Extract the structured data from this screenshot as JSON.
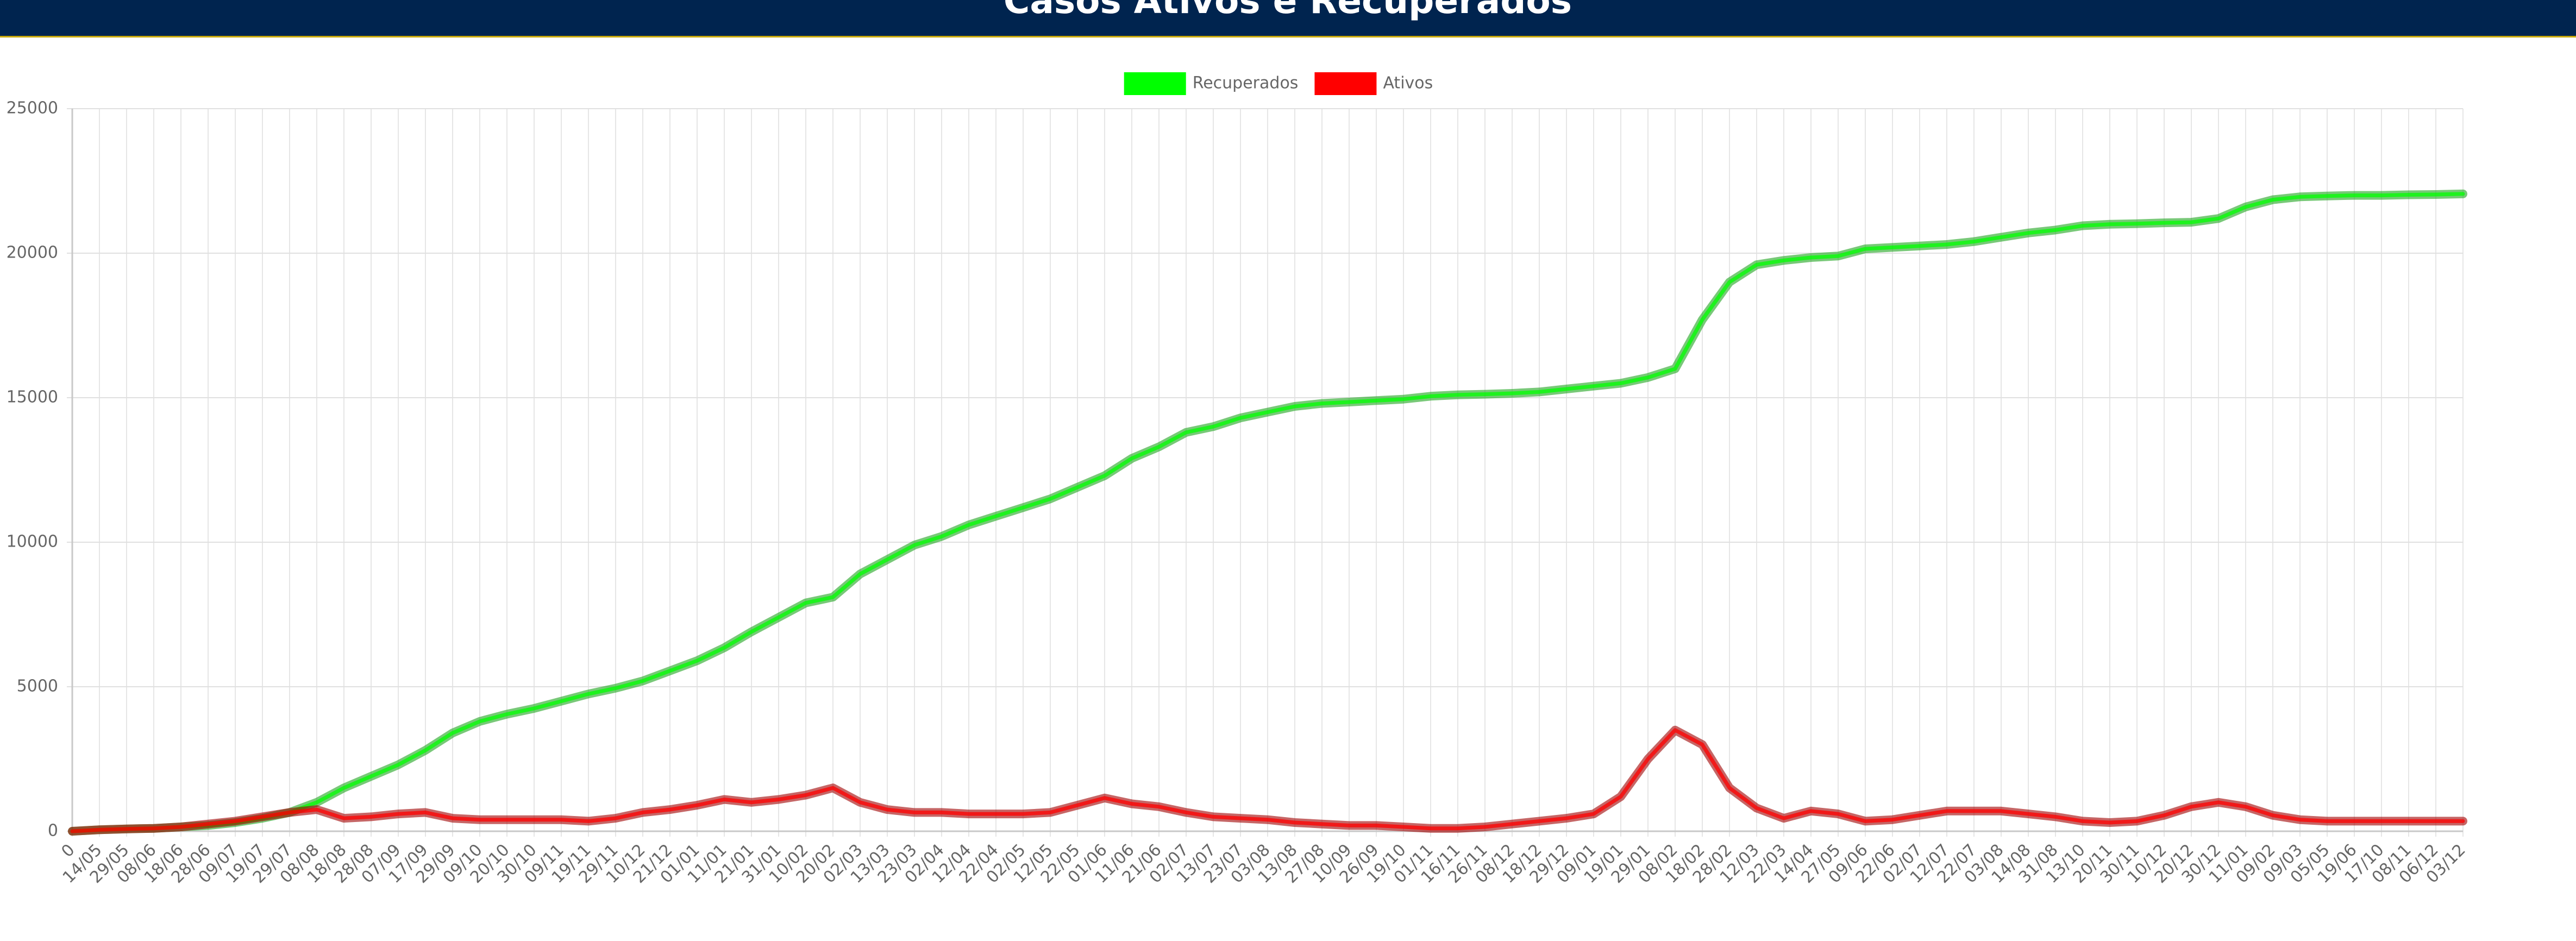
{
  "chart_data": {
    "type": "line",
    "title": "Casos Ativos e Recuperados",
    "categories": [
      "0",
      "14/05",
      "29/05",
      "08/06",
      "18/06",
      "28/06",
      "09/07",
      "19/07",
      "29/07",
      "08/08",
      "18/08",
      "28/08",
      "07/09",
      "17/09",
      "29/09",
      "09/10",
      "20/10",
      "30/10",
      "09/11",
      "19/11",
      "29/11",
      "10/12",
      "21/12",
      "01/01",
      "11/01",
      "21/01",
      "31/01",
      "10/02",
      "20/02",
      "02/03",
      "13/03",
      "23/03",
      "02/04",
      "12/04",
      "22/04",
      "02/05",
      "12/05",
      "22/05",
      "01/06",
      "11/06",
      "21/06",
      "02/07",
      "13/07",
      "23/07",
      "03/08",
      "13/08",
      "27/08",
      "10/09",
      "26/09",
      "19/10",
      "01/11",
      "16/11",
      "26/11",
      "08/12",
      "18/12",
      "29/12",
      "09/01",
      "19/01",
      "29/01",
      "08/02",
      "18/02",
      "28/02",
      "12/03",
      "22/03",
      "14/04",
      "27/05",
      "09/06",
      "22/06",
      "02/07",
      "12/07",
      "22/07",
      "03/08",
      "14/08",
      "31/08",
      "13/10",
      "20/11",
      "30/11",
      "10/12",
      "20/12",
      "30/12",
      "11/01",
      "09/02",
      "09/03",
      "05/05",
      "19/06",
      "17/10",
      "08/11",
      "06/12",
      "03/12"
    ],
    "series": [
      {
        "name": "Recuperados",
        "color": "#00ff00",
        "values": [
          0,
          50,
          80,
          100,
          150,
          200,
          300,
          450,
          650,
          1000,
          1500,
          1900,
          2300,
          2800,
          3400,
          3800,
          4050,
          4250,
          4500,
          4750,
          4950,
          5200,
          5550,
          5900,
          6350,
          6900,
          7400,
          7900,
          8100,
          8900,
          9400,
          9900,
          10200,
          10600,
          10900,
          11200,
          11500,
          11900,
          12300,
          12900,
          13300,
          13800,
          14000,
          14300,
          14500,
          14700,
          14800,
          14850,
          14900,
          14950,
          15050,
          15100,
          15120,
          15150,
          15200,
          15300,
          15400,
          15500,
          15700,
          16000,
          17700,
          19000,
          19600,
          19750,
          19850,
          19900,
          20150,
          20200,
          20250,
          20300,
          20400,
          20550,
          20700,
          20800,
          20950,
          21000,
          21020,
          21050,
          21070,
          21200,
          21600,
          21850,
          21950,
          21980,
          22000,
          22000,
          22020,
          22030,
          22050
        ]
      },
      {
        "name": "Ativos",
        "color": "#ff0000",
        "values": [
          0,
          50,
          80,
          100,
          150,
          250,
          350,
          500,
          650,
          750,
          450,
          500,
          600,
          650,
          450,
          400,
          400,
          400,
          400,
          350,
          450,
          650,
          750,
          900,
          1100,
          1000,
          1100,
          1250,
          1500,
          1000,
          750,
          650,
          650,
          600,
          600,
          600,
          650,
          900,
          1150,
          950,
          850,
          650,
          500,
          450,
          400,
          300,
          250,
          200,
          200,
          150,
          100,
          100,
          150,
          250,
          350,
          450,
          600,
          1200,
          2500,
          3500,
          3000,
          1500,
          800,
          450,
          700,
          600,
          350,
          400,
          550,
          700,
          700,
          700,
          600,
          500,
          350,
          300,
          350,
          550,
          850,
          1000,
          850,
          550,
          400,
          350,
          350,
          350,
          350,
          350,
          350
        ]
      }
    ],
    "ylim": [
      0,
      25000
    ],
    "yticks": [
      0,
      5000,
      10000,
      15000,
      20000,
      25000
    ],
    "grid": true,
    "legend": "top"
  }
}
